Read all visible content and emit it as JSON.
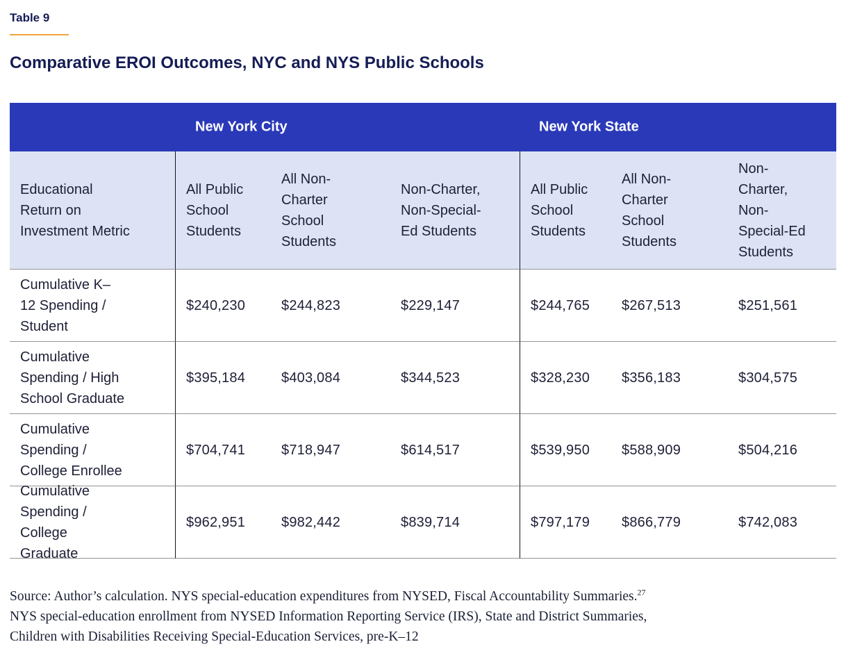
{
  "page": {
    "eyebrow": "Table 9",
    "title": "Comparative EROI Outcomes, NYC and NYS Public Schools",
    "colors": {
      "accent_orange": "#efa43c",
      "group_header_blue": "#2a39b8",
      "column_header_light_blue": "#dde3f4",
      "heading_navy": "#151c55",
      "row_divider_gray": "#949494"
    }
  },
  "table": {
    "group_headers": [
      "New York City",
      "New York State"
    ],
    "metric_header": "Educational Return on Investment Metric",
    "column_headers": [
      "All Public School Students",
      "All Non-Charter School Students",
      "Non-Charter, Non-Special-Ed Students",
      "All Public School Students",
      "All Non-Charter School Students",
      "Non-Charter, Non-Special-Ed Students"
    ],
    "rows": [
      {
        "metric": "Cumulative K–12 Spending / Student",
        "values": [
          "$240,230",
          "$244,823",
          "$229,147",
          "$244,765",
          "$267,513",
          "$251,561"
        ]
      },
      {
        "metric": "Cumulative Spending / High School Graduate",
        "values": [
          "$395,184",
          "$403,084",
          "$344,523",
          "$328,230",
          "$356,183",
          "$304,575"
        ]
      },
      {
        "metric": "Cumulative Spending / College Enrollee",
        "values": [
          "$704,741",
          "$718,947",
          "$614,517",
          "$539,950",
          "$588,909",
          "$504,216"
        ]
      },
      {
        "metric": "Cumulative Spending / College Graduate",
        "values": [
          "$962,951",
          "$982,442",
          "$839,714",
          "$797,179",
          "$866,779",
          "$742,083"
        ]
      }
    ]
  },
  "source": {
    "prefix": "Source: Author’s calculation. NYS special-education expenditures from NYSED, Fiscal Accountability Summaries.",
    "footnote_marker": "27",
    "suffix": " NYS special-education enrollment from NYSED Information Reporting Service (IRS), State and District Summaries, Children with Disabilities Receiving Special-Education Services, pre-K–12"
  }
}
